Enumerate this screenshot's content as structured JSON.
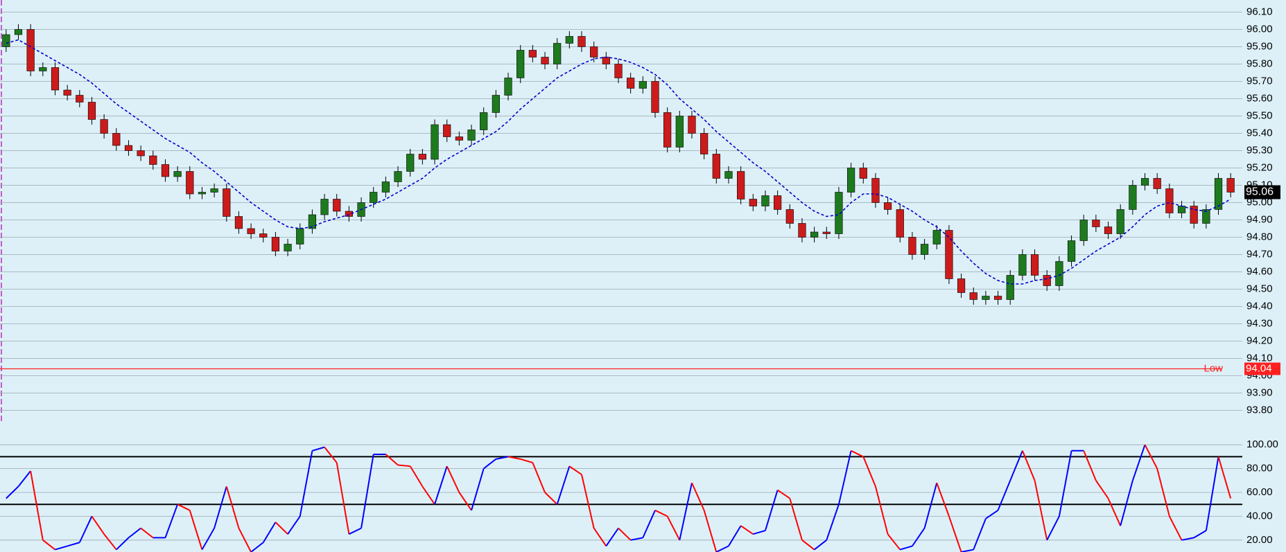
{
  "chart_data": [
    {
      "type": "candlestick",
      "open": [
        95.9,
        95.97,
        96.0,
        95.76,
        95.78,
        95.65,
        95.62,
        95.58,
        95.48,
        95.4,
        95.33,
        95.3,
        95.27,
        95.22,
        95.15,
        95.18,
        95.05,
        95.06,
        95.08,
        94.92,
        94.85,
        94.82,
        94.8,
        94.72,
        94.76,
        94.85,
        94.93,
        95.02,
        94.95,
        94.92,
        95.0,
        95.06,
        95.12,
        95.18,
        95.28,
        95.25,
        95.45,
        95.38,
        95.36,
        95.42,
        95.52,
        95.62,
        95.72,
        95.88,
        95.84,
        95.8,
        95.92,
        95.96,
        95.9,
        95.84,
        95.8,
        95.72,
        95.66,
        95.7,
        95.52,
        95.32,
        95.5,
        95.4,
        95.28,
        95.14,
        95.18,
        95.02,
        94.98,
        95.04,
        94.96,
        94.88,
        94.8,
        94.83,
        94.82,
        95.06,
        95.2,
        95.14,
        95.0,
        94.96,
        94.8,
        94.7,
        94.76,
        94.84,
        94.56,
        94.48,
        94.44,
        94.46,
        94.44,
        94.58,
        94.7,
        94.58,
        94.52,
        94.66,
        94.78,
        94.9,
        94.86,
        94.82,
        94.96,
        95.1,
        95.14,
        95.08,
        94.94,
        94.98,
        94.88,
        94.96,
        95.14
      ],
      "high": [
        96.0,
        96.03,
        96.03,
        95.81,
        95.81,
        95.68,
        95.65,
        95.61,
        95.51,
        95.43,
        95.36,
        95.33,
        95.3,
        95.25,
        95.21,
        95.21,
        95.09,
        95.11,
        95.11,
        94.95,
        94.88,
        94.85,
        94.83,
        94.79,
        94.88,
        94.96,
        95.05,
        95.05,
        94.98,
        95.03,
        95.09,
        95.15,
        95.21,
        95.31,
        95.31,
        95.48,
        95.48,
        95.41,
        95.45,
        95.55,
        95.65,
        95.75,
        95.91,
        95.91,
        95.87,
        95.95,
        95.99,
        95.99,
        95.93,
        95.87,
        95.83,
        95.75,
        95.73,
        95.73,
        95.55,
        95.53,
        95.53,
        95.43,
        95.31,
        95.21,
        95.21,
        95.05,
        95.07,
        95.07,
        94.99,
        94.91,
        94.86,
        94.86,
        95.09,
        95.23,
        95.23,
        95.17,
        95.03,
        94.99,
        94.83,
        94.79,
        94.87,
        94.87,
        94.59,
        94.51,
        94.49,
        94.49,
        94.61,
        94.73,
        94.73,
        94.61,
        94.69,
        94.81,
        94.93,
        94.93,
        94.89,
        94.99,
        95.13,
        95.17,
        95.17,
        95.11,
        95.01,
        95.01,
        94.99,
        95.17,
        95.17
      ],
      "low": [
        95.87,
        95.94,
        95.73,
        95.73,
        95.62,
        95.59,
        95.55,
        95.45,
        95.37,
        95.3,
        95.27,
        95.24,
        95.19,
        95.12,
        95.12,
        95.02,
        95.02,
        95.03,
        94.89,
        94.82,
        94.79,
        94.77,
        94.69,
        94.69,
        94.73,
        94.82,
        94.9,
        94.92,
        94.89,
        94.89,
        94.97,
        95.03,
        95.09,
        95.15,
        95.22,
        95.22,
        95.35,
        95.33,
        95.33,
        95.39,
        95.49,
        95.59,
        95.69,
        95.81,
        95.77,
        95.77,
        95.89,
        95.87,
        95.81,
        95.77,
        95.69,
        95.63,
        95.63,
        95.49,
        95.29,
        95.29,
        95.37,
        95.25,
        95.11,
        95.11,
        94.99,
        94.95,
        94.95,
        94.93,
        94.85,
        94.77,
        94.77,
        94.79,
        94.79,
        95.03,
        95.11,
        94.97,
        94.93,
        94.77,
        94.67,
        94.67,
        94.73,
        94.53,
        94.45,
        94.41,
        94.41,
        94.41,
        94.41,
        94.55,
        94.55,
        94.49,
        94.49,
        94.63,
        94.75,
        94.83,
        94.79,
        94.79,
        94.93,
        95.07,
        95.05,
        94.91,
        94.91,
        94.85,
        94.85,
        94.93,
        95.03
      ],
      "close": [
        95.97,
        96.0,
        95.76,
        95.78,
        95.65,
        95.62,
        95.58,
        95.48,
        95.4,
        95.33,
        95.3,
        95.27,
        95.22,
        95.15,
        95.18,
        95.05,
        95.06,
        95.08,
        94.92,
        94.85,
        94.82,
        94.8,
        94.72,
        94.76,
        94.85,
        94.93,
        95.02,
        94.95,
        94.92,
        95.0,
        95.06,
        95.12,
        95.18,
        95.28,
        95.25,
        95.45,
        95.38,
        95.36,
        95.42,
        95.52,
        95.62,
        95.72,
        95.88,
        95.84,
        95.8,
        95.92,
        95.96,
        95.9,
        95.84,
        95.8,
        95.72,
        95.66,
        95.7,
        95.52,
        95.32,
        95.5,
        95.4,
        95.28,
        95.14,
        95.18,
        95.02,
        94.98,
        95.04,
        94.96,
        94.88,
        94.8,
        94.83,
        94.82,
        95.06,
        95.2,
        95.14,
        95.0,
        94.96,
        94.8,
        94.7,
        94.76,
        94.84,
        94.56,
        94.48,
        94.44,
        94.46,
        94.44,
        94.58,
        94.7,
        94.58,
        94.52,
        94.66,
        94.78,
        94.9,
        94.86,
        94.82,
        94.96,
        95.1,
        95.14,
        95.08,
        94.94,
        94.98,
        94.88,
        94.96,
        95.14,
        95.06
      ],
      "up_color": "#1e7a1e",
      "down_color": "#cc1b1b",
      "overlay": {
        "color": "#0000cc",
        "dashed": true,
        "values": [
          95.92,
          95.94,
          95.9,
          95.86,
          95.82,
          95.78,
          95.74,
          95.69,
          95.63,
          95.57,
          95.52,
          95.47,
          95.42,
          95.37,
          95.33,
          95.29,
          95.23,
          95.18,
          95.12,
          95.06,
          95.0,
          94.95,
          94.9,
          94.86,
          94.85,
          94.86,
          94.89,
          94.91,
          94.93,
          94.96,
          94.99,
          95.02,
          95.06,
          95.1,
          95.14,
          95.2,
          95.25,
          95.29,
          95.33,
          95.37,
          95.41,
          95.47,
          95.54,
          95.6,
          95.66,
          95.72,
          95.76,
          95.8,
          95.83,
          95.84,
          95.83,
          95.81,
          95.78,
          95.74,
          95.68,
          95.6,
          95.54,
          95.48,
          95.41,
          95.35,
          95.29,
          95.23,
          95.18,
          95.12,
          95.06,
          95.0,
          94.95,
          94.92,
          94.93,
          95.0,
          95.05,
          95.05,
          95.03,
          94.99,
          94.95,
          94.9,
          94.86,
          94.8,
          94.72,
          94.65,
          94.59,
          94.55,
          94.53,
          94.53,
          94.55,
          94.56,
          94.58,
          94.62,
          94.67,
          94.72,
          94.76,
          94.8,
          94.86,
          94.93,
          94.98,
          95.0,
          94.98,
          94.96,
          94.95,
          94.98,
          95.02
        ]
      },
      "reference_line": {
        "label": "Low",
        "value": 94.04,
        "color": "#ff2020"
      },
      "ylim": [
        93.71,
        96.17
      ],
      "yticks": [
        {
          "value": 96.1,
          "label": "96.10"
        },
        {
          "value": 96.0,
          "label": "96.00"
        },
        {
          "value": 95.9,
          "label": "95.90"
        },
        {
          "value": 95.8,
          "label": "95.80"
        },
        {
          "value": 95.7,
          "label": "95.70"
        },
        {
          "value": 95.6,
          "label": "95.60"
        },
        {
          "value": 95.5,
          "label": "95.50"
        },
        {
          "value": 95.4,
          "label": "95.40"
        },
        {
          "value": 95.3,
          "label": "95.30"
        },
        {
          "value": 95.2,
          "label": "95.20"
        },
        {
          "value": 95.1,
          "label": "95.10"
        },
        {
          "value": 95.0,
          "label": "95.00"
        },
        {
          "value": 94.9,
          "label": "94.90"
        },
        {
          "value": 94.8,
          "label": "94.80"
        },
        {
          "value": 94.7,
          "label": "94.70"
        },
        {
          "value": 94.6,
          "label": "94.60"
        },
        {
          "value": 94.5,
          "label": "94.50"
        },
        {
          "value": 94.4,
          "label": "94.40"
        },
        {
          "value": 94.3,
          "label": "94.30"
        },
        {
          "value": 94.2,
          "label": "94.20"
        },
        {
          "value": 94.1,
          "label": "94.10"
        },
        {
          "value": 94.0,
          "label": "94.00"
        },
        {
          "value": 93.9,
          "label": "93.90"
        },
        {
          "value": 93.8,
          "label": "93.80"
        }
      ],
      "grid": true
    },
    {
      "type": "line",
      "values": [
        55,
        65,
        78,
        20,
        12,
        15,
        18,
        40,
        25,
        12,
        22,
        30,
        22,
        22,
        50,
        45,
        12,
        30,
        65,
        30,
        10,
        18,
        35,
        25,
        40,
        95,
        98,
        85,
        25,
        30,
        92,
        92,
        83,
        82,
        65,
        50,
        82,
        60,
        45,
        80,
        88,
        90,
        88,
        85,
        60,
        50,
        82,
        75,
        30,
        15,
        30,
        20,
        22,
        45,
        40,
        20,
        68,
        45,
        10,
        15,
        32,
        25,
        28,
        62,
        55,
        20,
        12,
        20,
        50,
        95,
        90,
        65,
        25,
        12,
        15,
        30,
        68,
        40,
        10,
        12,
        38,
        45,
        70,
        95,
        70,
        20,
        40,
        95,
        95,
        70,
        55,
        32,
        70,
        100,
        80,
        40,
        20,
        22,
        28,
        90,
        55
      ],
      "rising_color": "#0000ff",
      "falling_color": "#ff0000",
      "levels": [
        90,
        50
      ],
      "ylim": [
        10,
        110
      ],
      "yticks": [
        {
          "value": 100,
          "label": "100.00"
        },
        {
          "value": 80,
          "label": "80.00"
        },
        {
          "value": 60,
          "label": "60.00"
        },
        {
          "value": 40,
          "label": "40.00"
        },
        {
          "value": 20,
          "label": "20.00"
        }
      ],
      "grid": true
    }
  ]
}
